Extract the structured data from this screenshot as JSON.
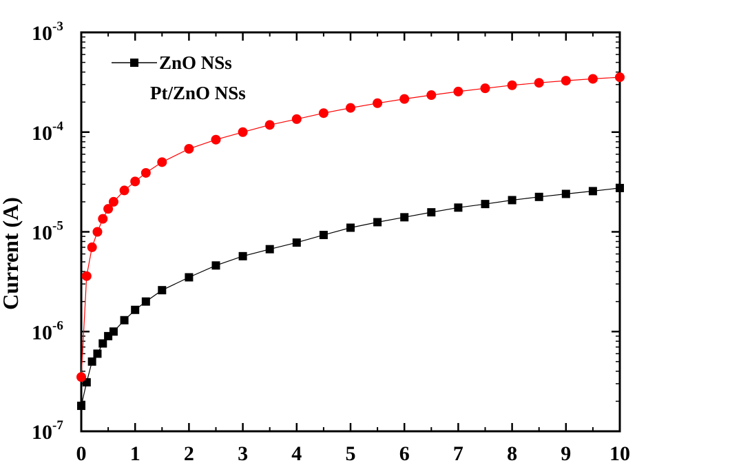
{
  "chart_data": {
    "type": "scatter",
    "title": "",
    "xlabel": "",
    "ylabel": "Current (A)",
    "y_scale": "log",
    "xlim": [
      0,
      10
    ],
    "ylim": [
      1e-07,
      0.001
    ],
    "grid": false,
    "legend_position": "top-left",
    "x_ticks": [
      "0",
      "1",
      "2",
      "3",
      "4",
      "5",
      "6",
      "7",
      "8",
      "9",
      "10"
    ],
    "y_ticks": [
      {
        "base": "10",
        "exp": "-7"
      },
      {
        "base": "10",
        "exp": "-6"
      },
      {
        "base": "10",
        "exp": "-5"
      },
      {
        "base": "10",
        "exp": "-4"
      },
      {
        "base": "10",
        "exp": "-3"
      }
    ],
    "series": [
      {
        "name": "ZnO NSs",
        "color": "#000000",
        "marker": "square",
        "x": [
          0,
          0.1,
          0.2,
          0.3,
          0.4,
          0.5,
          0.6,
          0.8,
          1,
          1.2,
          1.5,
          2,
          2.5,
          3,
          3.5,
          4,
          4.5,
          5,
          5.5,
          6,
          6.5,
          7,
          7.5,
          8,
          8.5,
          9,
          9.5,
          10
        ],
        "y": [
          1.8e-07,
          3.1e-07,
          5e-07,
          6e-07,
          7.6e-07,
          9e-07,
          1e-06,
          1.3e-06,
          1.65e-06,
          2e-06,
          2.6e-06,
          3.5e-06,
          4.6e-06,
          5.7e-06,
          6.7e-06,
          7.8e-06,
          9.3e-06,
          1.1e-05,
          1.25e-05,
          1.4e-05,
          1.57e-05,
          1.75e-05,
          1.9e-05,
          2.08e-05,
          2.24e-05,
          2.4e-05,
          2.56e-05,
          2.75e-05
        ]
      },
      {
        "name": "Pt/ZnO NSs",
        "color": "#ff0000",
        "marker": "circle",
        "x": [
          0,
          0.1,
          0.2,
          0.3,
          0.4,
          0.5,
          0.6,
          0.8,
          1,
          1.2,
          1.5,
          2,
          2.5,
          3,
          3.5,
          4,
          4.5,
          5,
          5.5,
          6,
          6.5,
          7,
          7.5,
          8,
          8.5,
          9,
          9.5,
          10
        ],
        "y": [
          3.5e-07,
          3.6e-06,
          7e-06,
          1e-05,
          1.35e-05,
          1.7e-05,
          2e-05,
          2.6e-05,
          3.2e-05,
          3.9e-05,
          5e-05,
          6.8e-05,
          8.4e-05,
          0.0001,
          0.000118,
          0.000135,
          0.000155,
          0.000175,
          0.000195,
          0.000215,
          0.000235,
          0.000255,
          0.000275,
          0.000295,
          0.000312,
          0.000328,
          0.000342,
          0.000355
        ]
      }
    ]
  }
}
